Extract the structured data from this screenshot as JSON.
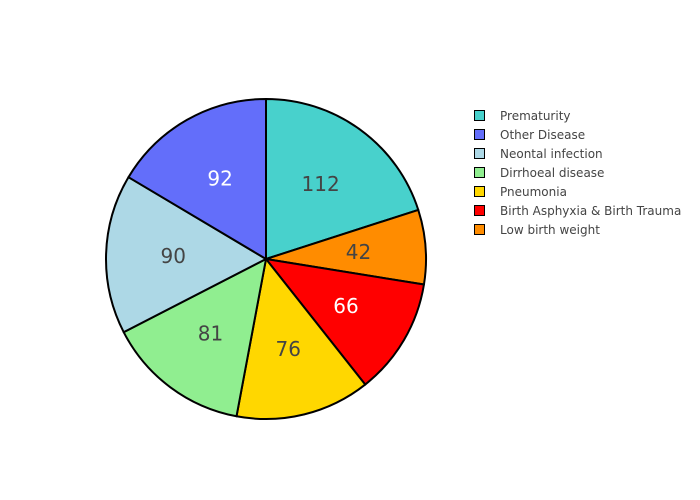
{
  "chart_data": {
    "type": "pie",
    "slices": [
      {
        "label": "Prematurity",
        "value": 112,
        "color": "#48D1CC",
        "text_color": "#444444"
      },
      {
        "label": "Low birth weight",
        "value": 42,
        "color": "#FF8C00",
        "text_color": "#444444"
      },
      {
        "label": "Birth Asphyxia & Birth Trauma",
        "value": 66,
        "color": "#FF0000",
        "text_color": "#FFFFFF"
      },
      {
        "label": "Pneumonia",
        "value": 76,
        "color": "#FFD700",
        "text_color": "#444444"
      },
      {
        "label": "Dirrhoeal disease",
        "value": 81,
        "color": "#90EE90",
        "text_color": "#444444"
      },
      {
        "label": "Neontal infection",
        "value": 90,
        "color": "#ADD8E6",
        "text_color": "#444444"
      },
      {
        "label": "Other Disease",
        "value": 92,
        "color": "#636EFA",
        "text_color": "#FFFFFF"
      }
    ],
    "legend_order": [
      "Prematurity",
      "Other Disease",
      "Neontal infection",
      "Dirrhoeal disease",
      "Pneumonia",
      "Birth Asphyxia & Birth Trauma",
      "Low birth weight"
    ],
    "legend_position": "top-right",
    "slice_border_color": "#000000",
    "text_info": "value"
  }
}
